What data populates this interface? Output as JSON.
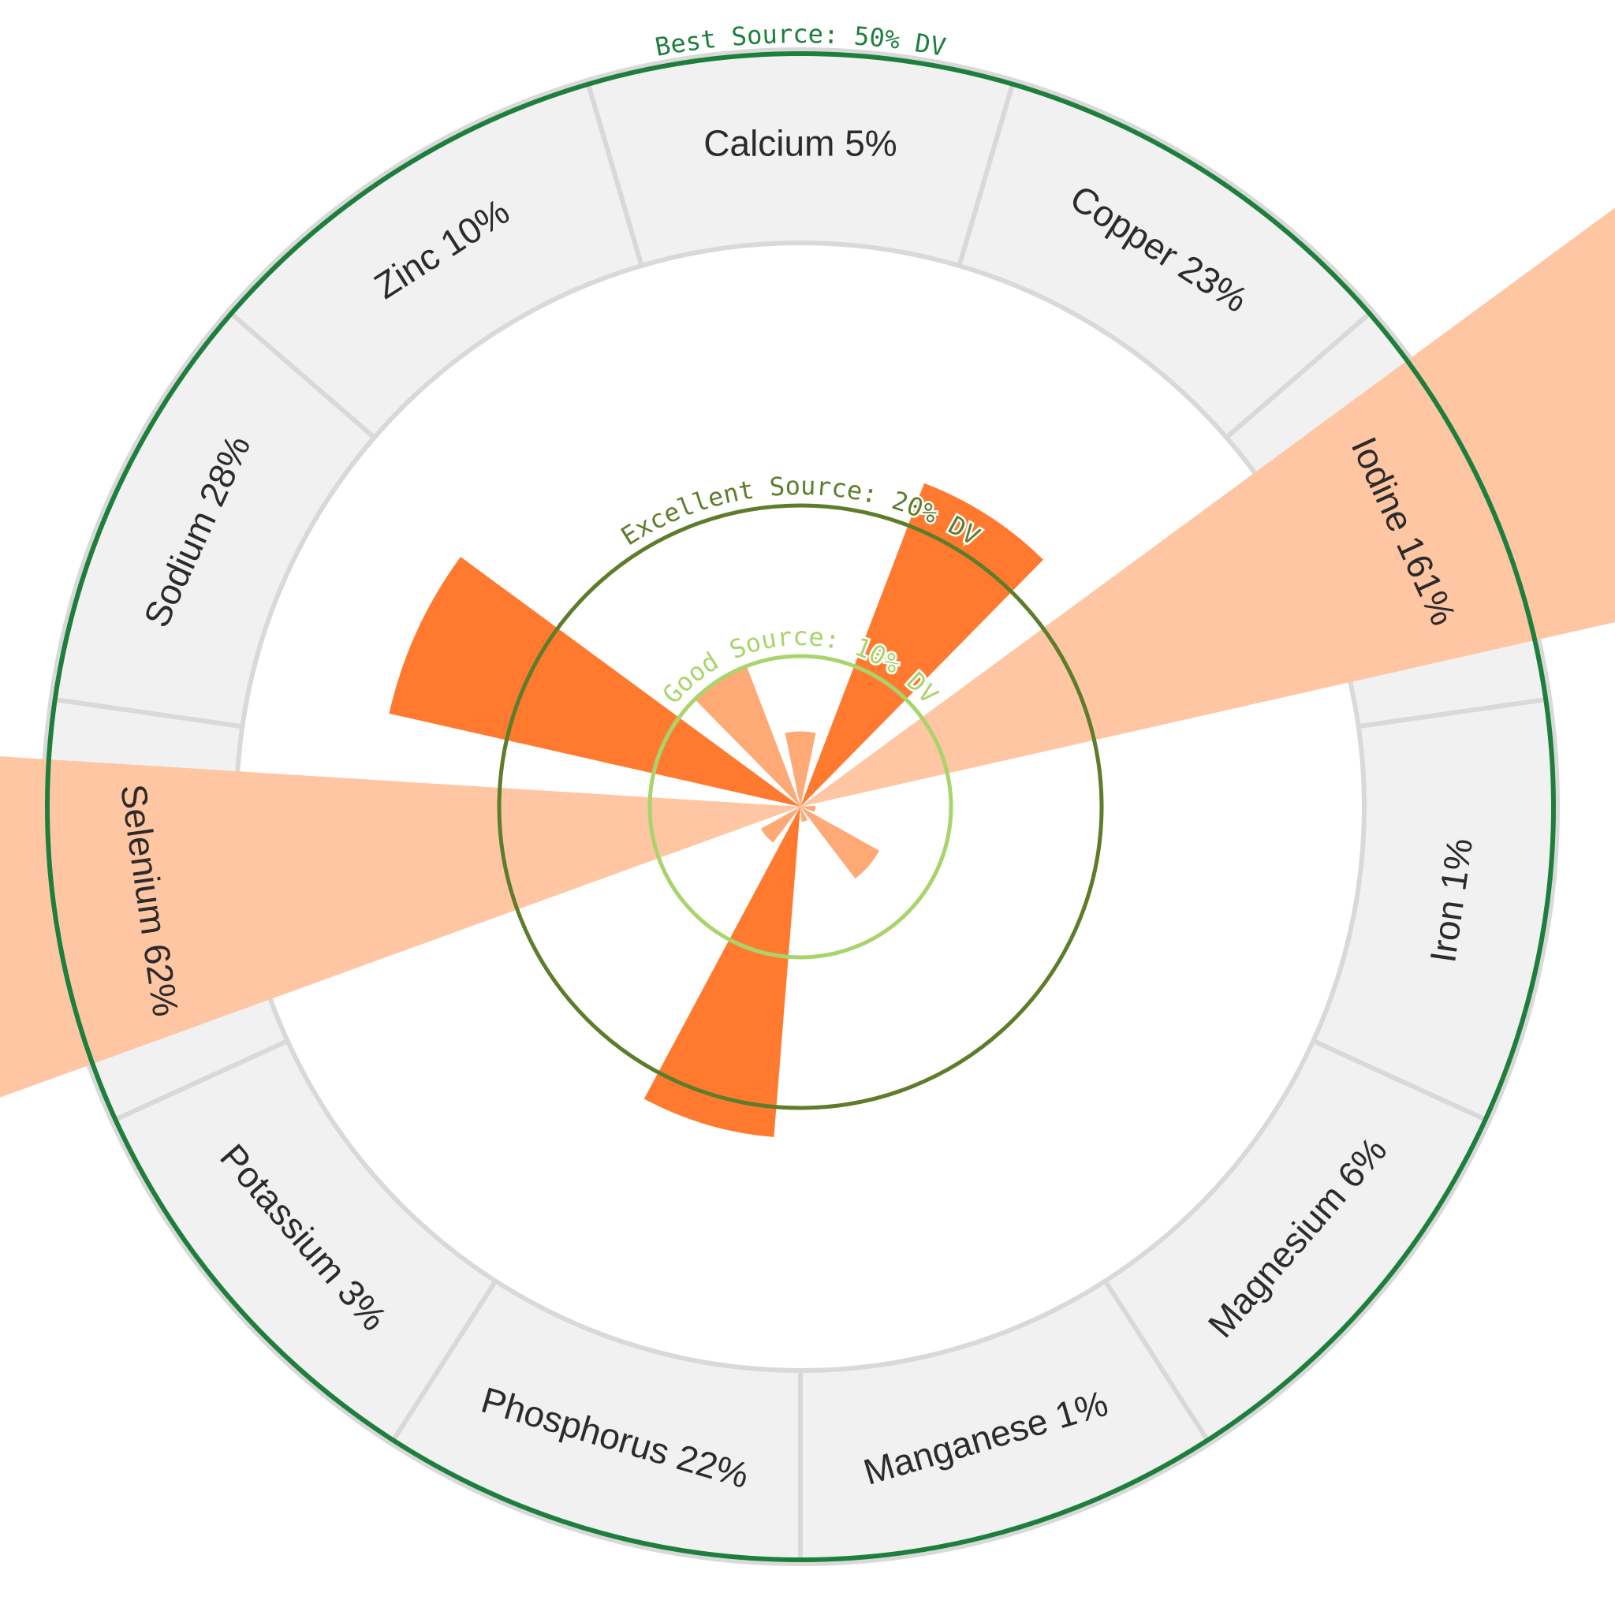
{
  "chart_data": {
    "type": "polar-bar",
    "unit": "% DV",
    "categories": [
      "Calcium",
      "Copper",
      "Iodine",
      "Iron",
      "Magnesium",
      "Manganese",
      "Phosphorus",
      "Potassium",
      "Selenium",
      "Sodium",
      "Zinc"
    ],
    "values": [
      5,
      23,
      161,
      1,
      6,
      1,
      22,
      3,
      62,
      28,
      10
    ],
    "segment_labels": [
      "Calcium 5%",
      "Copper 23%",
      "Iodine 161%",
      "Iron 1%",
      "Magnesium 6%",
      "Manganese 1%",
      "Phosphorus 22%",
      "Potassium 3%",
      "Selenium 62%",
      "Sodium 28%",
      "Zinc 10%"
    ],
    "reference_rings": [
      {
        "value": 10,
        "label": "Good Source: 10% DV",
        "color": "#a9d46c"
      },
      {
        "value": 20,
        "label": "Excellent Source: 20% DV",
        "color": "#5e7d2a"
      },
      {
        "value": 50,
        "label": "Best Source: 50% DV",
        "color": "#1e7f3c"
      }
    ],
    "colors": {
      "bar_dark": "#ff7a2e",
      "bar_light": "#ffa976",
      "bar_pale": "#ffc6a3",
      "segment_fill": "#f1f1f1",
      "segment_stroke": "#d9d9d9"
    }
  }
}
